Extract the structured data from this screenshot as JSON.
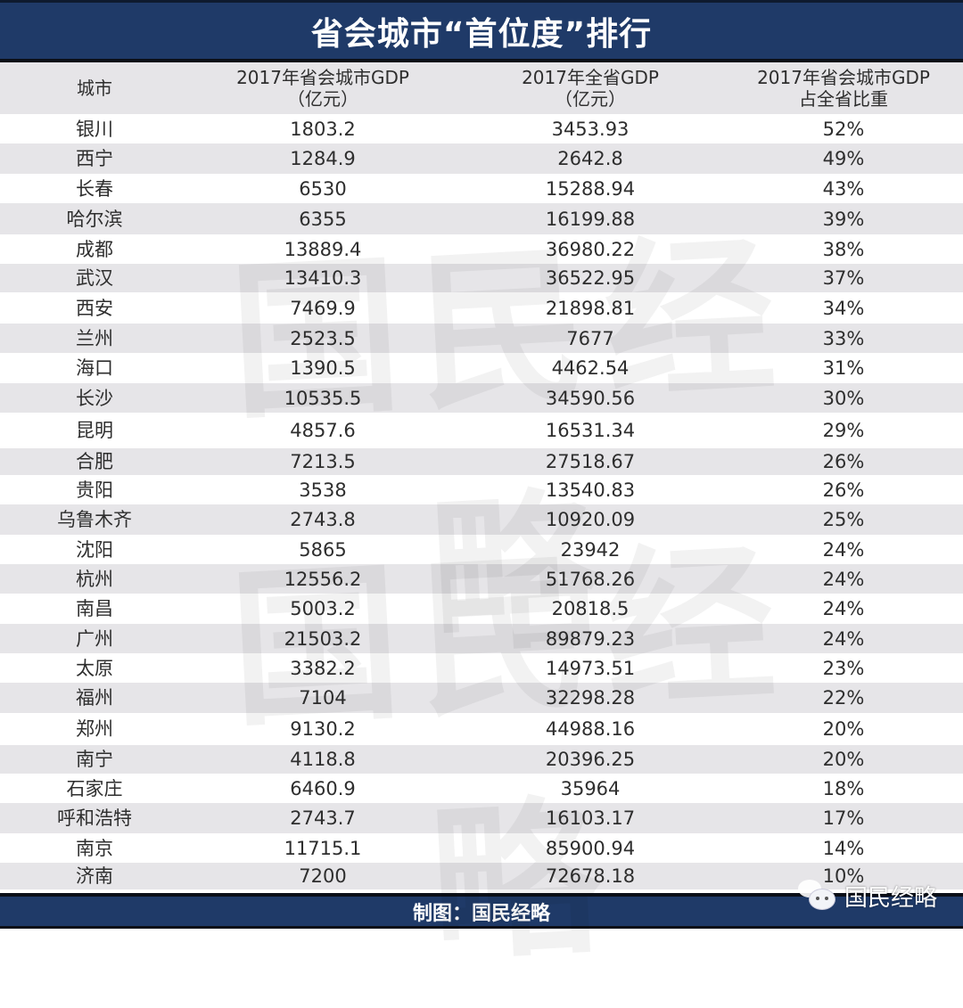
{
  "title": "省会城市“首位度”排行",
  "footer": {
    "credit": "制图：国民经略",
    "brand_name": "国民经略",
    "brand_icon": "wechat-icon"
  },
  "watermark": "国民经略",
  "colors": {
    "header_bar": "#1f3a68",
    "row_stripe": "#e6e5e8",
    "row_plain": "#ffffff",
    "text": "#2e2e2e"
  },
  "table": {
    "headers": [
      {
        "line1": "城市",
        "line2": ""
      },
      {
        "line1": "2017年省会城市GDP",
        "line2": "（亿元）"
      },
      {
        "line1": "2017年全省GDP",
        "line2": "（亿元）"
      },
      {
        "line1": "2017年省会城市GDP",
        "line2": "占全省比重"
      }
    ],
    "rows": [
      {
        "city": "银川",
        "capital_gdp": "1803.2",
        "province_gdp": "3453.93",
        "share": "52%"
      },
      {
        "city": "西宁",
        "capital_gdp": "1284.9",
        "province_gdp": "2642.8",
        "share": "49%"
      },
      {
        "city": "长春",
        "capital_gdp": "6530",
        "province_gdp": "15288.94",
        "share": "43%"
      },
      {
        "city": "哈尔滨",
        "capital_gdp": "6355",
        "province_gdp": "16199.88",
        "share": "39%"
      },
      {
        "city": "成都",
        "capital_gdp": "13889.4",
        "province_gdp": "36980.22",
        "share": "38%"
      },
      {
        "city": "武汉",
        "capital_gdp": "13410.3",
        "province_gdp": "36522.95",
        "share": "37%"
      },
      {
        "city": "西安",
        "capital_gdp": "7469.9",
        "province_gdp": "21898.81",
        "share": "34%"
      },
      {
        "city": "兰州",
        "capital_gdp": "2523.5",
        "province_gdp": "7677",
        "share": "33%"
      },
      {
        "city": "海口",
        "capital_gdp": "1390.5",
        "province_gdp": "4462.54",
        "share": "31%"
      },
      {
        "city": "长沙",
        "capital_gdp": "10535.5",
        "province_gdp": "34590.56",
        "share": "30%"
      },
      {
        "city": "昆明",
        "capital_gdp": "4857.6",
        "province_gdp": "16531.34",
        "share": "29%"
      },
      {
        "city": "合肥",
        "capital_gdp": "7213.5",
        "province_gdp": "27518.67",
        "share": "26%"
      },
      {
        "city": "贵阳",
        "capital_gdp": "3538",
        "province_gdp": "13540.83",
        "share": "26%"
      },
      {
        "city": "乌鲁木齐",
        "capital_gdp": "2743.8",
        "province_gdp": "10920.09",
        "share": "25%"
      },
      {
        "city": "沈阳",
        "capital_gdp": "5865",
        "province_gdp": "23942",
        "share": "24%"
      },
      {
        "city": "杭州",
        "capital_gdp": "12556.2",
        "province_gdp": "51768.26",
        "share": "24%"
      },
      {
        "city": "南昌",
        "capital_gdp": "5003.2",
        "province_gdp": "20818.5",
        "share": "24%"
      },
      {
        "city": "广州",
        "capital_gdp": "21503.2",
        "province_gdp": "89879.23",
        "share": "24%"
      },
      {
        "city": "太原",
        "capital_gdp": "3382.2",
        "province_gdp": "14973.51",
        "share": "23%"
      },
      {
        "city": "福州",
        "capital_gdp": "7104",
        "province_gdp": "32298.28",
        "share": "22%"
      },
      {
        "city": "郑州",
        "capital_gdp": "9130.2",
        "province_gdp": "44988.16",
        "share": "20%"
      },
      {
        "city": "南宁",
        "capital_gdp": "4118.8",
        "province_gdp": "20396.25",
        "share": "20%"
      },
      {
        "city": "石家庄",
        "capital_gdp": "6460.9",
        "province_gdp": "35964",
        "share": "18%"
      },
      {
        "city": "呼和浩特",
        "capital_gdp": "2743.7",
        "province_gdp": "16103.17",
        "share": "17%"
      },
      {
        "city": "南京",
        "capital_gdp": "11715.1",
        "province_gdp": "85900.94",
        "share": "14%"
      },
      {
        "city": "济南",
        "capital_gdp": "7200",
        "province_gdp": "72678.18",
        "share": "10%"
      }
    ]
  },
  "chart_data": {
    "type": "table",
    "title": "省会城市“首位度”排行",
    "columns": [
      "城市",
      "2017年省会城市GDP（亿元）",
      "2017年全省GDP（亿元）",
      "2017年省会城市GDP占全省比重"
    ],
    "categories": [
      "银川",
      "西宁",
      "长春",
      "哈尔滨",
      "成都",
      "武汉",
      "西安",
      "兰州",
      "海口",
      "长沙",
      "昆明",
      "合肥",
      "贵阳",
      "乌鲁木齐",
      "沈阳",
      "杭州",
      "南昌",
      "广州",
      "太原",
      "福州",
      "郑州",
      "南宁",
      "石家庄",
      "呼和浩特",
      "南京",
      "济南"
    ],
    "series": [
      {
        "name": "2017年省会城市GDP（亿元）",
        "values": [
          1803.2,
          1284.9,
          6530,
          6355,
          13889.4,
          13410.3,
          7469.9,
          2523.5,
          1390.5,
          10535.5,
          4857.6,
          7213.5,
          3538,
          2743.8,
          5865,
          12556.2,
          5003.2,
          21503.2,
          3382.2,
          7104,
          9130.2,
          4118.8,
          6460.9,
          2743.7,
          11715.1,
          7200
        ]
      },
      {
        "name": "2017年全省GDP（亿元）",
        "values": [
          3453.93,
          2642.8,
          15288.94,
          16199.88,
          36980.22,
          36522.95,
          21898.81,
          7677,
          4462.54,
          34590.56,
          16531.34,
          27518.67,
          13540.83,
          10920.09,
          23942,
          51768.26,
          20818.5,
          89879.23,
          14973.51,
          32298.28,
          44988.16,
          20396.25,
          35964,
          16103.17,
          85900.94,
          72678.18
        ]
      },
      {
        "name": "2017年省会城市GDP占全省比重 (%)",
        "values": [
          52,
          49,
          43,
          39,
          38,
          37,
          34,
          33,
          31,
          30,
          29,
          26,
          26,
          25,
          24,
          24,
          24,
          24,
          23,
          22,
          20,
          20,
          18,
          17,
          14,
          10
        ]
      }
    ],
    "source_note": "制图：国民经略"
  }
}
